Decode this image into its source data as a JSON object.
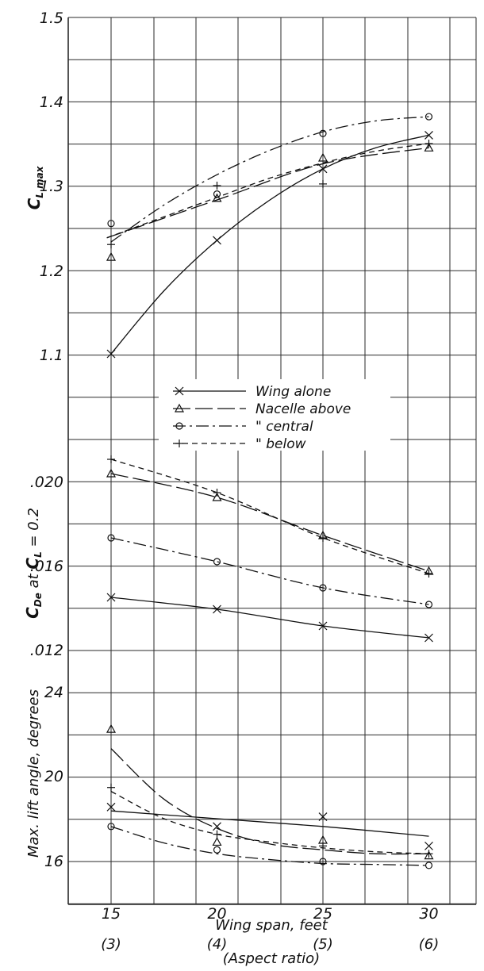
{
  "chart_data": [
    {
      "id": "clmax",
      "type": "line",
      "ylabel": "CLmax",
      "ylabel_main": "C",
      "ylabel_sub": "L max",
      "ylim": [
        1.0,
        1.5
      ],
      "y_ticks": [
        "1.1",
        "1.2",
        "1.3",
        "1.4",
        "1.5"
      ],
      "x": [
        15,
        20,
        25,
        30
      ],
      "series": [
        {
          "name": "Wing alone",
          "marker": "x",
          "dash": "",
          "values": [
            1.1,
            1.235,
            1.32,
            1.36
          ]
        },
        {
          "name": "Nacelle above",
          "marker": "triangle",
          "dash": "22 6",
          "values": [
            1.215,
            1.285,
            1.333,
            1.345
          ]
        },
        {
          "name": "central",
          "marker": "circle",
          "dash": "16 5 3 5",
          "values": [
            1.255,
            1.29,
            1.362,
            1.382
          ]
        },
        {
          "name": "below",
          "marker": "plus",
          "dash": "7 5",
          "values": [
            1.23,
            1.3,
            1.302,
            1.35
          ]
        }
      ],
      "fits": [
        [
          [
            15,
            1.1
          ],
          [
            17.5,
            1.175
          ],
          [
            20,
            1.235
          ],
          [
            22.5,
            1.283
          ],
          [
            25,
            1.32
          ],
          [
            27.5,
            1.345
          ],
          [
            30,
            1.36
          ]
        ],
        [
          [
            14.8,
            1.238
          ],
          [
            20,
            1.283
          ],
          [
            25,
            1.326
          ],
          [
            30,
            1.345
          ]
        ],
        [
          [
            15,
            1.233
          ],
          [
            17.5,
            1.277
          ],
          [
            20,
            1.313
          ],
          [
            22.5,
            1.342
          ],
          [
            25,
            1.364
          ],
          [
            27.5,
            1.377
          ],
          [
            30,
            1.382
          ]
        ],
        [
          [
            14.8,
            1.238
          ],
          [
            17.5,
            1.263
          ],
          [
            20,
            1.286
          ],
          [
            22.5,
            1.309
          ],
          [
            25,
            1.327
          ],
          [
            27.5,
            1.341
          ],
          [
            30,
            1.35
          ]
        ]
      ]
    },
    {
      "id": "cde",
      "type": "line",
      "ylabel_main": "C",
      "ylabel_sub": "De",
      "ylabel_tail": " at ",
      "ylabel_main2": "C",
      "ylabel_sub2": "L",
      "ylabel_end": " = 0.2",
      "ylim": [
        0.011,
        0.021
      ],
      "y_ticks": [
        ".012",
        ".016",
        ".020"
      ],
      "x": [
        15,
        20,
        25,
        30
      ],
      "series": [
        {
          "name": "Wing alone",
          "marker": "x",
          "dash": "",
          "values": [
            0.0145,
            0.014,
            0.0133,
            0.0128
          ]
        },
        {
          "name": "Nacelle above",
          "marker": "triangle",
          "dash": "22 6",
          "values": [
            0.0197,
            0.0187,
            0.0171,
            0.0156
          ]
        },
        {
          "name": "central",
          "marker": "circle",
          "dash": "16 5 3 5",
          "values": [
            0.017,
            0.016,
            0.0149,
            0.0142
          ]
        },
        {
          "name": "below",
          "marker": "plus",
          "dash": "7 5",
          "values": [
            0.0203,
            0.0189,
            0.017,
            0.0155
          ]
        }
      ]
    },
    {
      "id": "angle",
      "type": "line",
      "ylabel": "Max. lift angle, degrees",
      "ylim": [
        14,
        26
      ],
      "y_ticks": [
        "16",
        "20",
        "24"
      ],
      "x": [
        15,
        20,
        25,
        30
      ],
      "series": [
        {
          "name": "Wing alone",
          "marker": "x",
          "dash": "",
          "values": [
            19.0,
            18.0,
            18.5,
            17.0
          ]
        },
        {
          "name": "Nacelle above",
          "marker": "triangle",
          "dash": "22 6",
          "values": [
            23.0,
            17.2,
            17.3,
            16.5
          ]
        },
        {
          "name": "central",
          "marker": "circle",
          "dash": "16 5 3 5",
          "values": [
            18.0,
            16.8,
            16.2,
            16.0
          ]
        },
        {
          "name": "below",
          "marker": "plus",
          "dash": "7 5",
          "values": [
            20.0,
            17.6,
            17.0,
            16.6
          ]
        }
      ],
      "fits": [
        [
          [
            15,
            18.8
          ],
          [
            20,
            18.4
          ],
          [
            25,
            18.0
          ],
          [
            30,
            17.5
          ]
        ],
        [
          [
            15,
            22.0
          ],
          [
            17.5,
            19.4
          ],
          [
            20,
            17.9
          ],
          [
            22.5,
            17.1
          ],
          [
            25,
            16.8
          ],
          [
            27.5,
            16.6
          ],
          [
            30,
            16.6
          ]
        ],
        [
          [
            15,
            18.0
          ],
          [
            17.5,
            17.15
          ],
          [
            20,
            16.6
          ],
          [
            22.5,
            16.3
          ],
          [
            25,
            16.1
          ],
          [
            27.5,
            16.05
          ],
          [
            30,
            16.0
          ]
        ],
        [
          [
            15,
            19.8
          ],
          [
            17.5,
            18.4
          ],
          [
            20,
            17.6
          ],
          [
            22.5,
            17.2
          ],
          [
            25,
            16.9
          ],
          [
            27.5,
            16.7
          ],
          [
            30,
            16.6
          ]
        ]
      ]
    }
  ],
  "x_axis": {
    "title": "Wing span, feet",
    "subtitle": "(Aspect ratio)",
    "ticks": [
      "15",
      "20",
      "25",
      "30"
    ],
    "aspect_ticks": [
      "(3)",
      "(4)",
      "(5)",
      "(6)"
    ]
  },
  "legend": {
    "entries": [
      {
        "marker": "x",
        "dash": "",
        "label": "Wing alone"
      },
      {
        "marker": "triangle",
        "dash": "22 6",
        "label": "Nacelle above"
      },
      {
        "marker": "circle",
        "dash": "16 5 3 5",
        "label": "\"        central"
      },
      {
        "marker": "plus",
        "dash": "7 5",
        "label": "\"        below"
      }
    ]
  }
}
